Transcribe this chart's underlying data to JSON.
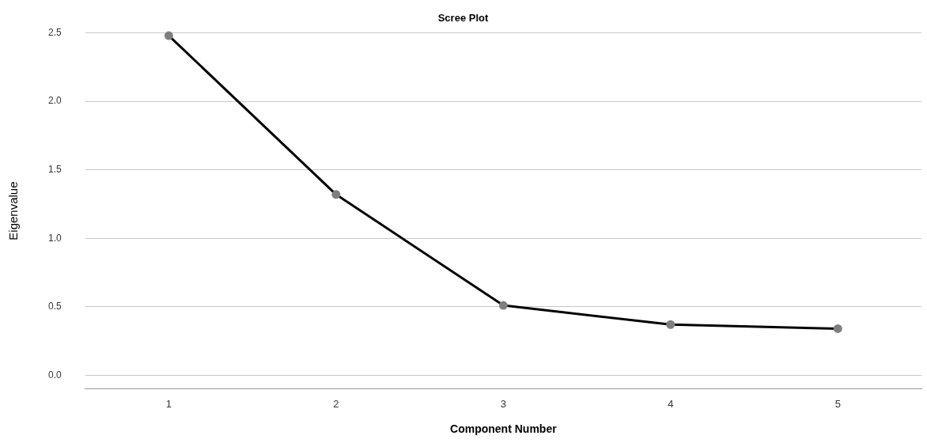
{
  "chart_data": {
    "type": "line",
    "title": "Scree Plot",
    "xlabel": "Component Number",
    "ylabel": "Eigenvalue",
    "categories": [
      "1",
      "2",
      "3",
      "4",
      "5"
    ],
    "series": [
      {
        "color": "#000000",
        "values": [
          2.48,
          1.32,
          0.51,
          0.37,
          0.34
        ]
      }
    ],
    "ylim": [
      -0.1,
      2.5
    ],
    "yticks": [
      {
        "value": 0,
        "label": "0.0"
      },
      {
        "value": 0.5,
        "label": "0.5"
      },
      {
        "value": 1,
        "label": "1.0"
      },
      {
        "value": 1.5,
        "label": "1.5"
      },
      {
        "value": 2,
        "label": "2.0"
      },
      {
        "value": 2.5,
        "label": "2.5"
      }
    ],
    "grid": "y",
    "legend": false,
    "marker": "circle",
    "line_style": "solid"
  }
}
